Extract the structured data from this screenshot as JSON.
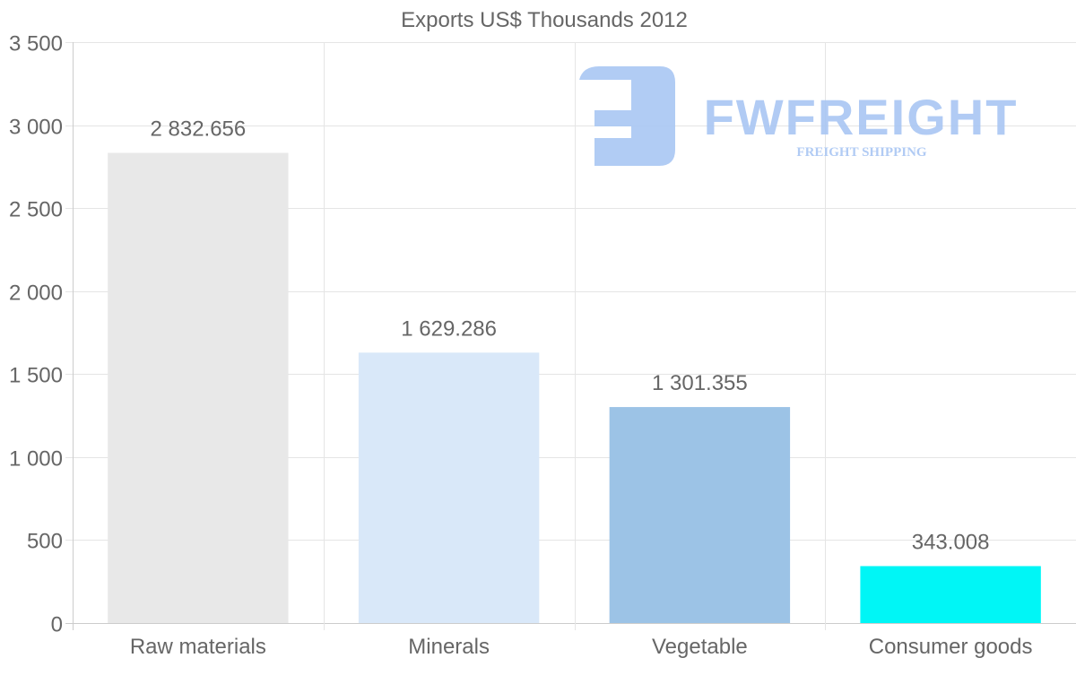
{
  "chart_data": {
    "type": "bar",
    "title": "Exports US$ Thousands 2012",
    "categories": [
      "Raw materials",
      "Minerals",
      "Vegetable",
      "Consumer goods"
    ],
    "values": [
      2832.656,
      1629.286,
      1301.355,
      343.008
    ],
    "value_labels": [
      "2 832.656",
      "1 629.286",
      "1 301.355",
      "343.008"
    ],
    "colors": [
      "#e8e8e8",
      "#d9e8f9",
      "#9cc3e6",
      "#00f6f6"
    ],
    "ylim": [
      0,
      3500
    ],
    "yticks": [
      0,
      500,
      1000,
      1500,
      2000,
      2500,
      3000,
      3500
    ],
    "ytick_labels": [
      "0",
      "500",
      "1 000",
      "1 500",
      "2 000",
      "2 500",
      "3 000",
      "3 500"
    ],
    "xlabel": "",
    "ylabel": "",
    "grid": true,
    "legend": "none"
  },
  "watermark": {
    "brand": "FWFREIGHT",
    "tagline": "FREIGHT SHIPPING",
    "color": "#a9c6f3"
  }
}
